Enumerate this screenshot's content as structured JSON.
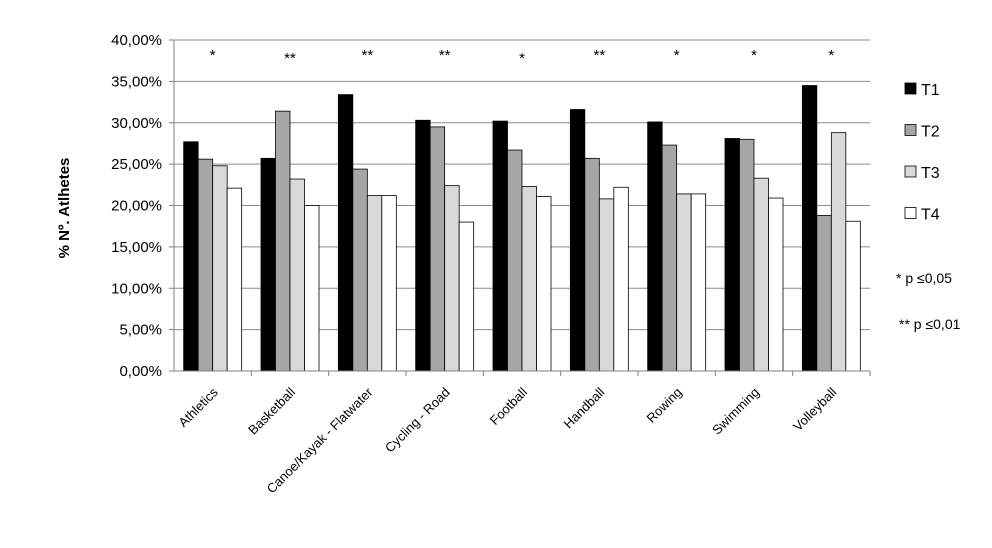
{
  "chart_data": {
    "type": "bar",
    "title": "",
    "xlabel": "",
    "ylabel": "% Nº. Atlhetes",
    "ylim": [
      0,
      40
    ],
    "ytick_labels": [
      "0,00%",
      "5,00%",
      "10,00%",
      "15,00%",
      "20,00%",
      "25,00%",
      "30,00%",
      "35,00%",
      "40,00%"
    ],
    "grid": "horizontal",
    "legend_position": "right",
    "categories": [
      "Athletics",
      "Basketball",
      "Canoe/Kayak - Flatwater",
      "Cycling - Road",
      "Football",
      "Handball",
      "Rowing",
      "Swimming",
      "Volleyball"
    ],
    "significance": [
      "*",
      "**",
      "**",
      "**",
      "*",
      "**",
      "*",
      "*",
      "*"
    ],
    "series": [
      {
        "name": "T1",
        "color": "#000000",
        "values": [
          27.7,
          25.7,
          33.4,
          30.3,
          30.2,
          31.6,
          30.1,
          28.1,
          34.5
        ]
      },
      {
        "name": "T2",
        "color": "#a6a6a6",
        "values": [
          25.6,
          31.4,
          24.4,
          29.5,
          26.7,
          25.7,
          27.3,
          28.0,
          18.8
        ]
      },
      {
        "name": "T3",
        "color": "#d9d9d9",
        "values": [
          24.8,
          23.2,
          21.2,
          22.4,
          22.3,
          20.8,
          21.4,
          23.3,
          28.8
        ]
      },
      {
        "name": "T4",
        "color": "#ffffff",
        "values": [
          22.1,
          20.0,
          21.2,
          18.0,
          21.1,
          22.2,
          21.4,
          20.9,
          18.1
        ]
      }
    ],
    "notes": [
      "* p ≤0,05",
      "** p ≤0,01"
    ]
  }
}
